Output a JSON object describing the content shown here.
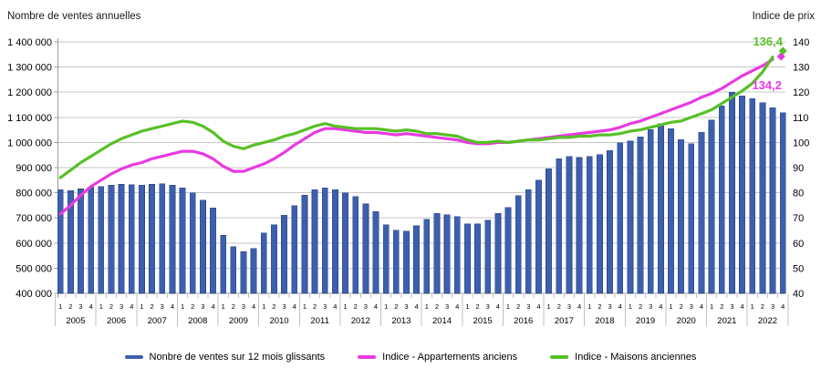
{
  "header": {
    "left_axis_title": "Nombre de ventes annuelles",
    "right_axis_title": "Indice de prix"
  },
  "colors": {
    "bar_fill": "#3d5fae",
    "bar_stroke": "#2d4a85",
    "apartments_line": "#e93ae1",
    "houses_line": "#58bf27",
    "gridline": "#c7c7c7",
    "axis": "#9b9b9b",
    "separator": "#c0c0c0",
    "text": "#000000"
  },
  "legend": {
    "items": [
      {
        "label": "Nonbre de ventes sur 12 mois glissants",
        "color": "#3d5fae"
      },
      {
        "label": "Indice - Appartements anciens",
        "color": "#e93ae1"
      },
      {
        "label": "Indice - Maisons anciennes",
        "color": "#58bf27"
      }
    ]
  },
  "chart_data": {
    "type": "bar+line",
    "title": "",
    "years": [
      "2005",
      "2006",
      "2007",
      "2008",
      "2009",
      "2010",
      "2011",
      "2012",
      "2013",
      "2014",
      "2015",
      "2016",
      "2017",
      "2018",
      "2019",
      "2020",
      "2021",
      "2022"
    ],
    "quarter_labels": [
      "1",
      "2",
      "3",
      "4"
    ],
    "left_axis": {
      "label": "Nombre de ventes annuelles",
      "min": 400000,
      "max": 1400000,
      "step": 100000,
      "tick_labels": [
        "1 400 000",
        "1 300 000",
        "1 200 000",
        "1 100 000",
        "1 000 000",
        "900 000",
        "800 000",
        "700 000",
        "600 000",
        "500 000",
        "400 000"
      ]
    },
    "right_axis": {
      "label": "Indice de prix",
      "min": 40,
      "max": 140,
      "step": 10,
      "tick_labels": [
        "140",
        "130",
        "120",
        "110",
        "100",
        "90",
        "80",
        "70",
        "60",
        "50",
        "40"
      ]
    },
    "bars": {
      "name": "Nonbre de ventes sur 12 mois glissants",
      "values": [
        812000,
        808000,
        815000,
        822000,
        825000,
        830000,
        833000,
        831000,
        830000,
        833000,
        835000,
        830000,
        820000,
        800000,
        770000,
        740000,
        630000,
        585000,
        565000,
        578000,
        640000,
        672000,
        710000,
        748000,
        790000,
        812000,
        820000,
        812000,
        800000,
        785000,
        755000,
        725000,
        672000,
        651000,
        648000,
        668000,
        695000,
        718000,
        712000,
        705000,
        676000,
        676000,
        690000,
        718000,
        742000,
        788000,
        812000,
        850000,
        895000,
        935000,
        945000,
        940000,
        945000,
        952000,
        968000,
        999000,
        1005000,
        1022000,
        1052000,
        1075000,
        1055000,
        1012000,
        995000,
        1040000,
        1090000,
        1145000,
        1200000,
        1185000,
        1175000,
        1158000,
        1138000,
        1118000
      ]
    },
    "series": [
      {
        "name": "Indice - Appartements anciens",
        "end_label": "134,2",
        "end_value": 134.2,
        "values": [
          71.5,
          75,
          79,
          82.5,
          85,
          87.5,
          89.5,
          91,
          92,
          93.5,
          94.5,
          95.5,
          96.5,
          96.5,
          95.5,
          93.5,
          90.5,
          88.5,
          88.5,
          90,
          91.5,
          93.5,
          96,
          99,
          101.5,
          104,
          105.5,
          105.5,
          105,
          104.5,
          104,
          104,
          103.5,
          103,
          103.5,
          103,
          102.5,
          102,
          101.5,
          101,
          100,
          99.5,
          99.5,
          100,
          100,
          100.5,
          101,
          101.5,
          102,
          102.5,
          103,
          103.5,
          104,
          104.5,
          105,
          106,
          107.5,
          108.5,
          110,
          111.5,
          113,
          114.5,
          116,
          118,
          119.5,
          121.5,
          124,
          126.5,
          128.5,
          130.5,
          133,
          134.2
        ]
      },
      {
        "name": "Indice - Maisons anciennes",
        "end_label": "136,4",
        "end_value": 136.4,
        "values": [
          86,
          89,
          92,
          94.5,
          97,
          99.5,
          101.5,
          103,
          104.5,
          105.5,
          106.5,
          107.5,
          108.5,
          108,
          106.5,
          104,
          100.5,
          98.5,
          97.5,
          99,
          100,
          101,
          102.5,
          103.5,
          105,
          106.5,
          107.5,
          106.5,
          106,
          105.5,
          105.5,
          105.5,
          105,
          104.5,
          105,
          104.5,
          103.5,
          103.5,
          103,
          102.5,
          101,
          100,
          100,
          100.5,
          100,
          100.5,
          101,
          101,
          101.5,
          102,
          102,
          102.5,
          102.5,
          103,
          103,
          103.5,
          104.5,
          105,
          106,
          107,
          108,
          108.5,
          110,
          111.5,
          113,
          115.5,
          118,
          120.5,
          123.5,
          128,
          134,
          136.4
        ]
      }
    ],
    "layout": {
      "grid": true,
      "legend_position": "bottom",
      "last_point_marker": "diamond"
    }
  }
}
